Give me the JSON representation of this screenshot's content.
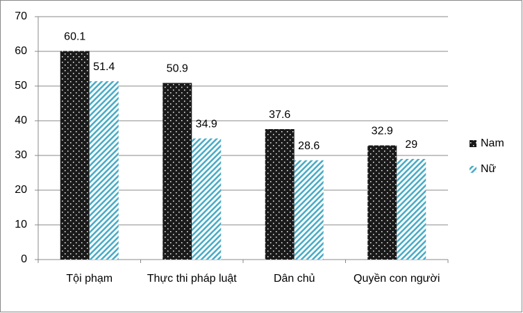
{
  "chart_data": {
    "type": "bar",
    "categories": [
      "Tội phạm",
      "Thực thi pháp luật",
      "Dân chủ",
      "Quyền con người"
    ],
    "series": [
      {
        "name": "Nam",
        "color": "#1a1a1a",
        "values": [
          60.1,
          50.9,
          37.6,
          32.9
        ]
      },
      {
        "name": "Nữ",
        "color": "#4bacc6",
        "values": [
          51.4,
          34.9,
          28.6,
          29
        ]
      }
    ],
    "ylim": [
      0,
      70
    ],
    "yticks": [
      0,
      10,
      20,
      30,
      40,
      50,
      60,
      70
    ],
    "grid": true,
    "legend": "right"
  }
}
